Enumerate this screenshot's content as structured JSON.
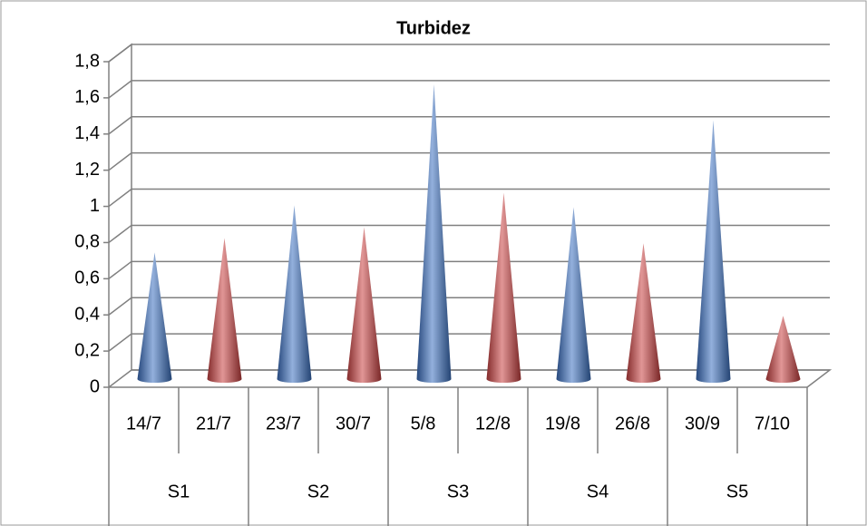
{
  "chart_data": {
    "type": "cone",
    "title": "Turbidez",
    "categories": [
      "14/7",
      "21/7",
      "23/7",
      "30/7",
      "5/8",
      "12/8",
      "19/8",
      "26/8",
      "30/9",
      "7/10"
    ],
    "groups": [
      "S1",
      "S2",
      "S3",
      "S4",
      "S5"
    ],
    "values": [
      0.7,
      0.78,
      0.96,
      0.84,
      1.63,
      1.03,
      0.95,
      0.75,
      1.43,
      0.35
    ],
    "colors": [
      "#3a6fc0",
      "#c94040",
      "#3a6fc0",
      "#c94040",
      "#3a6fc0",
      "#c94040",
      "#3a6fc0",
      "#c94040",
      "#3a6fc0",
      "#c94040"
    ],
    "ylim": [
      0,
      1.8
    ],
    "yticks": [
      0,
      {
        "value": 0.2,
        "label": "0,2"
      },
      {
        "value": 0.4,
        "label": "0,4"
      },
      {
        "value": 0.6,
        "label": "0,6"
      },
      {
        "value": 0.8,
        "label": "0,8"
      },
      1,
      {
        "value": 1.2,
        "label": "1,2"
      },
      {
        "value": 1.4,
        "label": "1,4"
      },
      {
        "value": 1.6,
        "label": "1,6"
      },
      {
        "value": 1.8,
        "label": "1,8"
      }
    ],
    "grid": true
  }
}
